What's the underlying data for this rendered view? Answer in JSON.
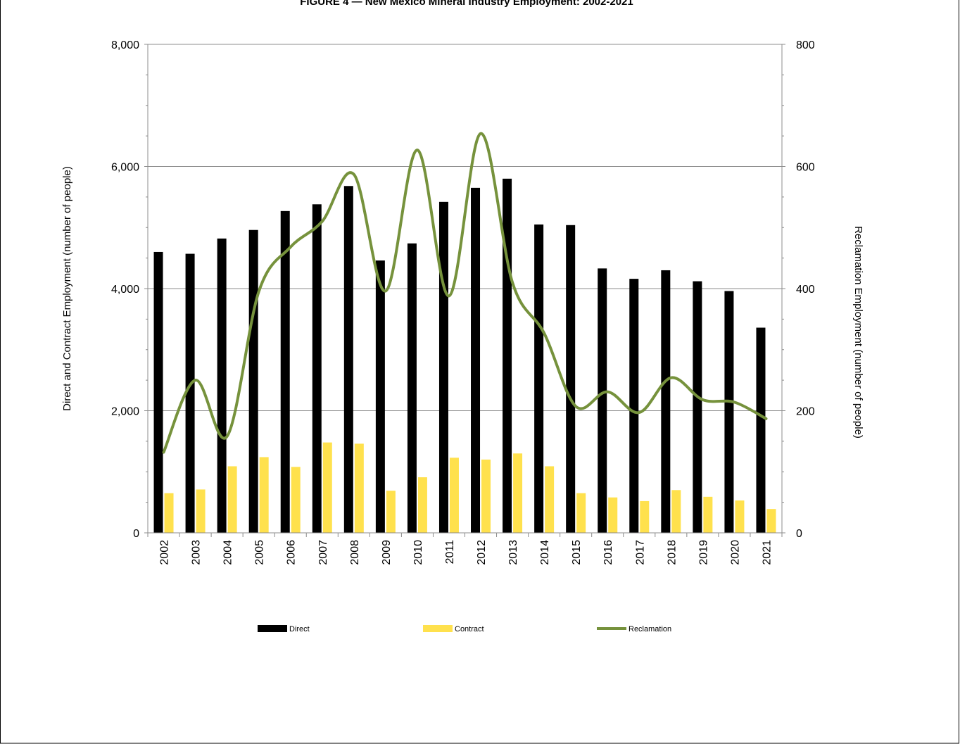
{
  "chart_data": {
    "type": "bar",
    "title": "FIGURE 4 — New Mexico Mineral Industry Employment: 2002-2021",
    "ylabel": "Direct and Contract Employment (number of people)",
    "y2label": "Reclamation Employment (number of people)",
    "xlabel": "",
    "ylim": [
      0,
      8000
    ],
    "y2lim": [
      0,
      800
    ],
    "y_ticks": [
      "0",
      "2,000",
      "4,000",
      "6,000",
      "8,000"
    ],
    "y2_ticks": [
      "0",
      "200",
      "400",
      "600",
      "800"
    ],
    "grid": true,
    "legend_position": "bottom",
    "categories": [
      "2002",
      "2003",
      "2004",
      "2005",
      "2006",
      "2007",
      "2008",
      "2009",
      "2010",
      "2011",
      "2012",
      "2013",
      "2014",
      "2015",
      "2016",
      "2017",
      "2018",
      "2019",
      "2020",
      "2021"
    ],
    "series": [
      {
        "name": "Direct",
        "type": "bar",
        "axis": "left",
        "color": "#000000",
        "values": [
          4600,
          4570,
          4820,
          4960,
          5270,
          5380,
          5680,
          4460,
          4740,
          5420,
          5650,
          5800,
          5050,
          5040,
          4330,
          4160,
          4300,
          4120,
          3960,
          3360
        ]
      },
      {
        "name": "Contract",
        "type": "bar",
        "axis": "left",
        "color": "#FFE14D",
        "values": [
          650,
          710,
          1090,
          1240,
          1080,
          1480,
          1460,
          690,
          910,
          1230,
          1200,
          1300,
          1090,
          650,
          580,
          520,
          700,
          590,
          530,
          390
        ]
      },
      {
        "name": "Reclamation",
        "type": "line",
        "axis": "right",
        "color": "#76923C",
        "values": [
          132,
          250,
          158,
          395,
          468,
          510,
          587,
          396,
          627,
          388,
          654,
          410,
          327,
          207,
          231,
          197,
          254,
          218,
          214,
          187
        ]
      }
    ]
  }
}
